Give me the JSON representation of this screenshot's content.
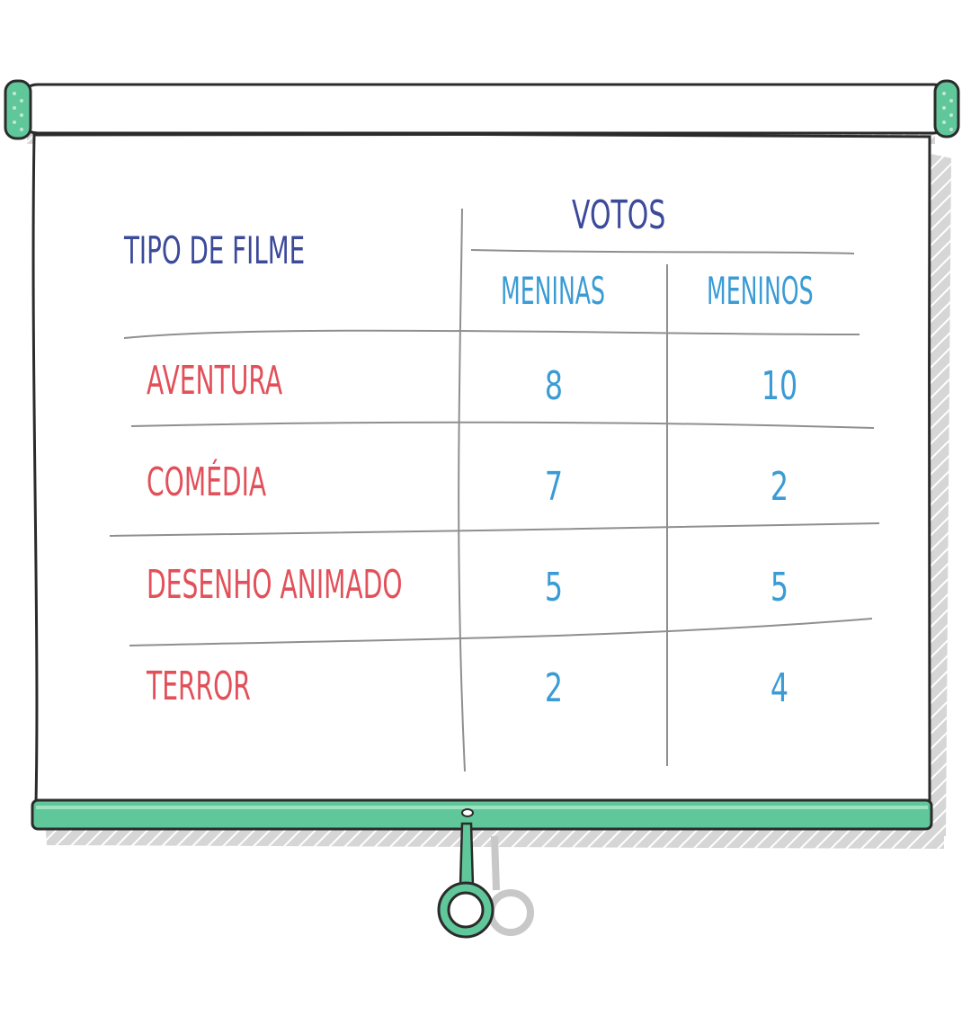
{
  "table": {
    "header": {
      "type_label": "Tipo de Filme",
      "votes_label": "VOTOS",
      "girls_label": "Meninas",
      "boys_label": "Meninos"
    },
    "rows": [
      {
        "type": "Aventura",
        "girls": "8",
        "boys": "10"
      },
      {
        "type": "Comédia",
        "girls": "7",
        "boys": "2"
      },
      {
        "type": "Desenho Animado",
        "girls": "5",
        "boys": "5"
      },
      {
        "type": "Terror",
        "girls": "2",
        "boys": "4"
      }
    ]
  },
  "colors": {
    "header_text": "#3b4a9a",
    "subheader_text": "#3a9bd5",
    "row_label_text": "#e2505a",
    "number_text": "#3a9bd5",
    "accent_green": "#5fc79a",
    "outline": "#2b2b2b",
    "shadow_gray": "#c8c8c8"
  }
}
